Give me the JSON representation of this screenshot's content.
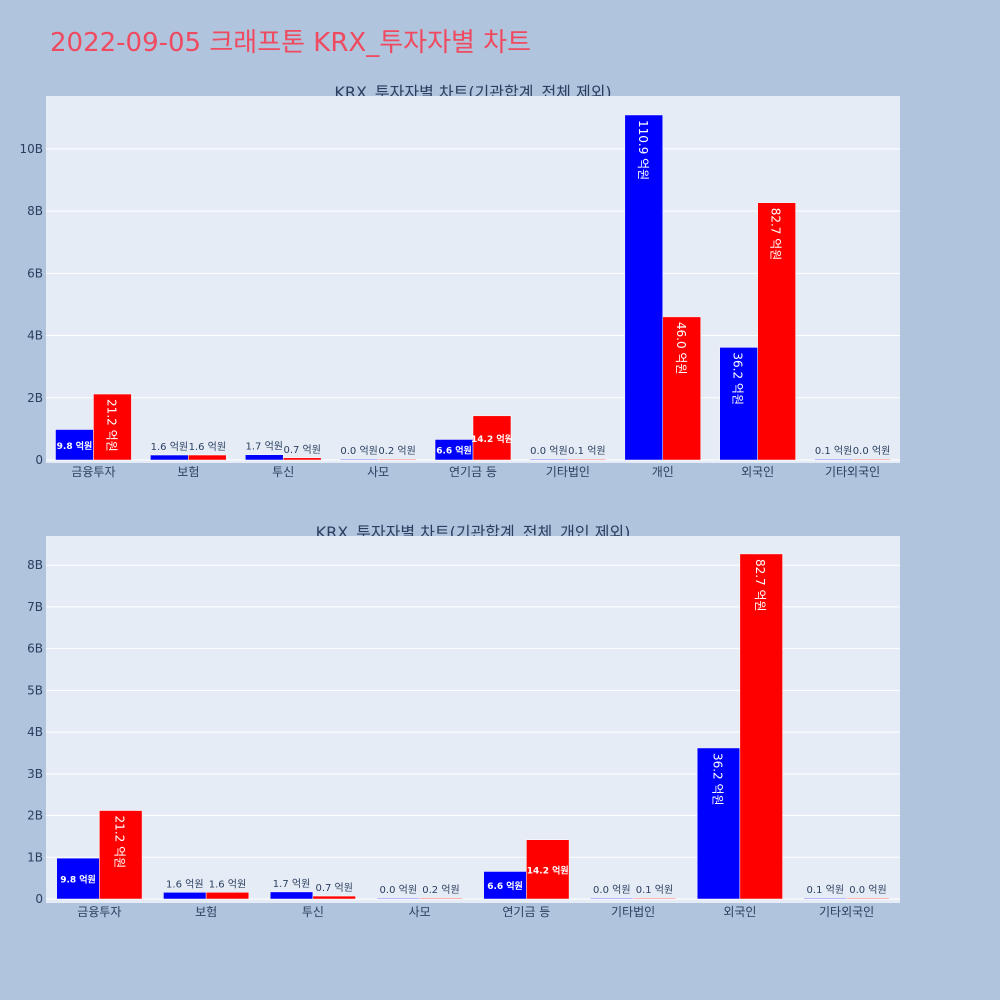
{
  "title": "2022-09-05 크래프톤 KRX_투자자별 차트",
  "colors": {
    "page_background": "#b0c4de",
    "plot_background": "#e5ecf6",
    "title": "#ef4a5f",
    "series_1": "#0000ff",
    "series_2": "#ff0000",
    "axis_text": "#2a3f5f"
  },
  "chart_data": [
    {
      "type": "bar",
      "title": "KRX_투자자별 차트(기관합계_전체 제외)",
      "categories": [
        "금융투자",
        "보험",
        "투신",
        "사모",
        "연기금 등",
        "기타법인",
        "개인",
        "외국인",
        "기타외국인"
      ],
      "series": [
        {
          "color": "#0000ff",
          "values": [
            0.98,
            0.16,
            0.17,
            0.0,
            0.66,
            0.0,
            11.09,
            3.62,
            0.01
          ],
          "labels": [
            "9.8 억원",
            "1.6 억원",
            "1.7 억원",
            "0.0 억원",
            "6.6 억원",
            "0.0 억원",
            "110.9 억원",
            "36.2 억원",
            "0.1 억원"
          ]
        },
        {
          "color": "#ff0000",
          "values": [
            2.12,
            0.16,
            0.07,
            0.02,
            1.42,
            0.01,
            4.6,
            8.27,
            0.0
          ],
          "labels": [
            "21.2 억원",
            "1.6 억원",
            "0.7 억원",
            "0.2 억원",
            "14.2 억원",
            "0.1 억원",
            "46.0 억원",
            "82.7 억원",
            "0.0 억원"
          ]
        }
      ],
      "yticks": [
        0,
        2,
        4,
        6,
        8,
        10
      ],
      "ytick_labels": [
        "0",
        "2B",
        "4B",
        "6B",
        "8B",
        "10B"
      ],
      "ylim": [
        0,
        11.7
      ],
      "grid": true
    },
    {
      "type": "bar",
      "title": "KRX_투자자별 차트(기관합계_전체_개인 제외)",
      "categories": [
        "금융투자",
        "보험",
        "투신",
        "사모",
        "연기금 등",
        "기타법인",
        "외국인",
        "기타외국인"
      ],
      "series": [
        {
          "color": "#0000ff",
          "values": [
            0.98,
            0.16,
            0.17,
            0.0,
            0.66,
            0.0,
            3.62,
            0.01
          ],
          "labels": [
            "9.8 억원",
            "1.6 억원",
            "1.7 억원",
            "0.0 억원",
            "6.6 억원",
            "0.0 억원",
            "36.2 억원",
            "0.1 억원"
          ]
        },
        {
          "color": "#ff0000",
          "values": [
            2.12,
            0.16,
            0.07,
            0.02,
            1.42,
            0.01,
            8.27,
            0.0
          ],
          "labels": [
            "21.2 억원",
            "1.6 억원",
            "0.7 억원",
            "0.2 억원",
            "14.2 억원",
            "0.1 억원",
            "82.7 억원",
            "0.0 억원"
          ]
        }
      ],
      "yticks": [
        0,
        1,
        2,
        3,
        4,
        5,
        6,
        7,
        8
      ],
      "ytick_labels": [
        "0",
        "1B",
        "2B",
        "3B",
        "4B",
        "5B",
        "6B",
        "7B",
        "8B"
      ],
      "ylim": [
        0,
        8.7
      ],
      "grid": true
    }
  ]
}
